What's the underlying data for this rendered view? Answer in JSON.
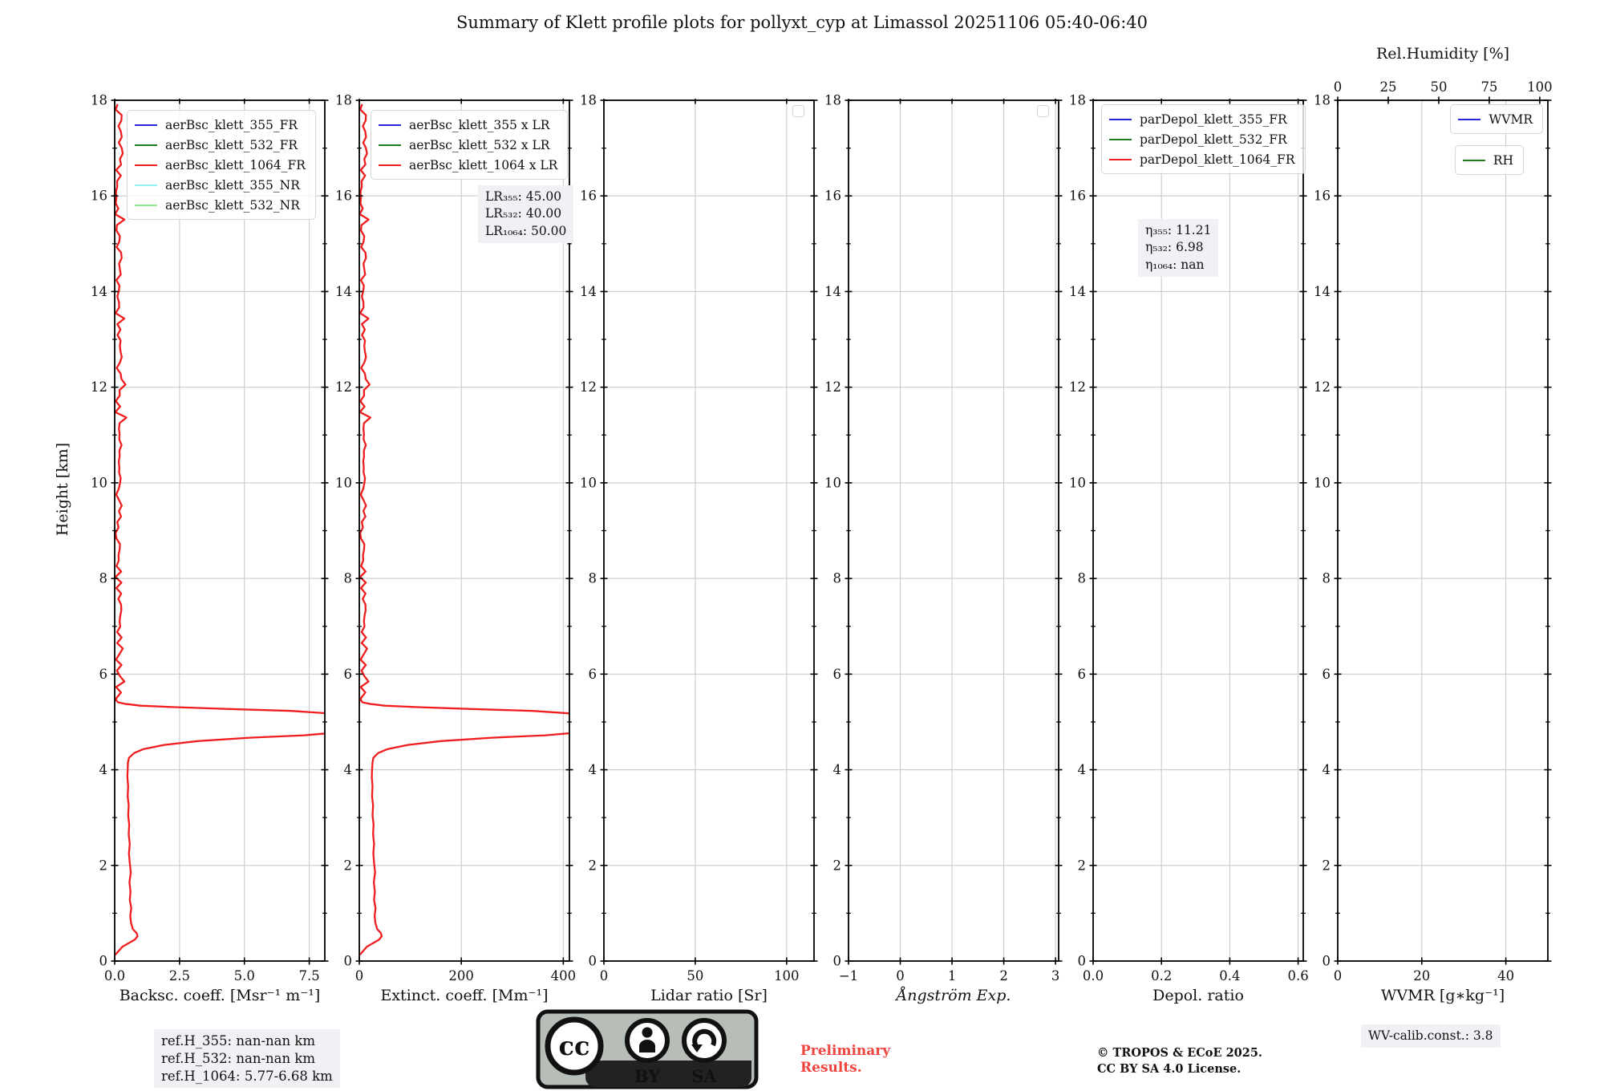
{
  "title": "Summary of Klett profile plots for pollyxt_cyp at Limassol 20251106 05:40-06:40",
  "height_axis": {
    "label": "Height [km]",
    "min": 0,
    "max": 18,
    "major_step": 2,
    "minor_step": 1
  },
  "footer": {
    "ref_heights": [
      "ref.H_355: nan-nan km",
      "ref.H_532: nan-nan km",
      "ref.H_1064: 5.77-6.68 km"
    ],
    "preliminary_lines": [
      "Preliminary",
      "Results."
    ],
    "credit_lines": [
      "© TROPOS & ECoE 2025.",
      "CC BY SA 4.0 License."
    ],
    "wv_calib": "WV-calib.const.: 3.8",
    "license": {
      "cc": "cc",
      "by": "BY",
      "sa": "SA"
    }
  },
  "chart_data": [
    {
      "name": "backscatter",
      "type": "line",
      "xlabel": "Backsc. coeff. [Msr⁻¹ m⁻¹]",
      "xlim": [
        0,
        8.1
      ],
      "ylim": [
        0,
        18
      ],
      "grid": true,
      "xticks": [
        {
          "v": 0,
          "t": "0.0"
        },
        {
          "v": 2.5,
          "t": "2.5"
        },
        {
          "v": 5,
          "t": "5.0"
        },
        {
          "v": 7.5,
          "t": "7.5"
        }
      ],
      "legends": [
        {
          "x": 15,
          "y": 12,
          "items": [
            {
              "label": "aerBsc_klett_355_FR",
              "color": "#2727d8"
            },
            {
              "label": "aerBsc_klett_532_FR",
              "color": "#1e7d1e"
            },
            {
              "label": "aerBsc_klett_1064_FR",
              "color": "#ef1d1d"
            },
            {
              "label": "aerBsc_klett_355_NR",
              "color": "#8ef2ee"
            },
            {
              "label": "aerBsc_klett_532_NR",
              "color": "#8fe98f"
            }
          ]
        }
      ],
      "series": [
        {
          "name": "aerBsc_klett_1064_FR",
          "color": "#ef1d1d",
          "points": [
            [
              0.02,
              0.13
            ],
            [
              0.3,
              0.3
            ],
            [
              0.78,
              0.45
            ],
            [
              0.88,
              0.52
            ],
            [
              0.85,
              0.58
            ],
            [
              0.7,
              0.67
            ],
            [
              0.63,
              0.8
            ],
            [
              0.6,
              0.95
            ],
            [
              0.64,
              1.1
            ],
            [
              0.58,
              1.28
            ],
            [
              0.61,
              1.45
            ],
            [
              0.57,
              1.65
            ],
            [
              0.62,
              1.85
            ],
            [
              0.58,
              2.05
            ],
            [
              0.55,
              2.25
            ],
            [
              0.58,
              2.45
            ],
            [
              0.54,
              2.65
            ],
            [
              0.56,
              2.85
            ],
            [
              0.52,
              3.05
            ],
            [
              0.54,
              3.25
            ],
            [
              0.5,
              3.45
            ],
            [
              0.52,
              3.65
            ],
            [
              0.49,
              3.85
            ],
            [
              0.5,
              4.0
            ],
            [
              0.51,
              4.15
            ],
            [
              0.55,
              4.25
            ],
            [
              0.75,
              4.35
            ],
            [
              1.1,
              4.43
            ],
            [
              1.9,
              4.52
            ],
            [
              3.2,
              4.6
            ],
            [
              5.2,
              4.67
            ],
            [
              7.3,
              4.72
            ],
            [
              8.6,
              4.78
            ],
            [
              8.8,
              4.9
            ],
            [
              8.8,
              5.05
            ],
            [
              8.6,
              5.13
            ],
            [
              8.2,
              5.18
            ],
            [
              6.8,
              5.23
            ],
            [
              4.4,
              5.27
            ],
            [
              2.3,
              5.31
            ],
            [
              1.0,
              5.34
            ],
            [
              0.38,
              5.38
            ],
            [
              0.13,
              5.41
            ],
            [
              0.06,
              5.45
            ]
          ],
          "noise": {
            "h_from": 5.5,
            "h_to": 17.95,
            "step": 0.115,
            "base": 0.015,
            "amp": 0.27,
            "seed": 9
          }
        }
      ]
    },
    {
      "name": "extinction",
      "type": "line",
      "xlabel": "Extinct. coeff. [Mm⁻¹]",
      "xlim": [
        0,
        412
      ],
      "ylim": [
        0,
        18
      ],
      "grid": true,
      "xticks": [
        {
          "v": 0,
          "t": "0"
        },
        {
          "v": 200,
          "t": "200"
        },
        {
          "v": 400,
          "t": "400"
        }
      ],
      "legends": [
        {
          "x": 14,
          "y": 12,
          "items": [
            {
              "label": "aerBsc_klett_355 x LR",
              "color": "#2727d8"
            },
            {
              "label": "aerBsc_klett_532 x LR",
              "color": "#1e7d1e"
            },
            {
              "label": "aerBsc_klett_1064 x LR",
              "color": "#ef1d1d"
            }
          ]
        }
      ],
      "annotation": {
        "x": 148,
        "y": 106,
        "lines": [
          "LR₃₅₅: 45.00",
          "LR₅₃₂: 40.00",
          "LR₁₀₆₄: 50.00"
        ]
      },
      "series": [
        {
          "name": "aerBsc_klett_1064 x LR",
          "color": "#ef1d1d",
          "points": [
            [
              1,
              0.13
            ],
            [
              15,
              0.3
            ],
            [
              39,
              0.45
            ],
            [
              44,
              0.52
            ],
            [
              42.5,
              0.58
            ],
            [
              35,
              0.67
            ],
            [
              31.5,
              0.8
            ],
            [
              30,
              0.95
            ],
            [
              32,
              1.1
            ],
            [
              29,
              1.28
            ],
            [
              30.5,
              1.45
            ],
            [
              28.5,
              1.65
            ],
            [
              31,
              1.85
            ],
            [
              29,
              2.05
            ],
            [
              27.5,
              2.25
            ],
            [
              29,
              2.45
            ],
            [
              27,
              2.65
            ],
            [
              28,
              2.85
            ],
            [
              26,
              3.05
            ],
            [
              27,
              3.25
            ],
            [
              25,
              3.45
            ],
            [
              26,
              3.65
            ],
            [
              24.5,
              3.85
            ],
            [
              25,
              4.0
            ],
            [
              26,
              4.15
            ],
            [
              27.5,
              4.25
            ],
            [
              37,
              4.35
            ],
            [
              55,
              4.43
            ],
            [
              95,
              4.52
            ],
            [
              160,
              4.6
            ],
            [
              260,
              4.67
            ],
            [
              365,
              4.72
            ],
            [
              430,
              4.78
            ],
            [
              440,
              4.9
            ],
            [
              440,
              5.05
            ],
            [
              430,
              5.13
            ],
            [
              410,
              5.18
            ],
            [
              340,
              5.23
            ],
            [
              220,
              5.27
            ],
            [
              115,
              5.31
            ],
            [
              50,
              5.34
            ],
            [
              19,
              5.38
            ],
            [
              6.5,
              5.41
            ],
            [
              3,
              5.45
            ]
          ],
          "noise": {
            "h_from": 5.5,
            "h_to": 17.95,
            "step": 0.115,
            "base": 0.8,
            "amp": 13,
            "seed": 9
          }
        }
      ]
    },
    {
      "name": "lidar-ratio",
      "type": "line",
      "xlabel": "Lidar ratio [Sr]",
      "xlim": [
        0,
        115
      ],
      "ylim": [
        0,
        18
      ],
      "grid": true,
      "xticks": [
        {
          "v": 0,
          "t": "0"
        },
        {
          "v": 50,
          "t": "50"
        },
        {
          "v": 100,
          "t": "100"
        }
      ],
      "legends": [
        {
          "right": 12,
          "y": 6,
          "empty": true,
          "items": []
        }
      ],
      "series": []
    },
    {
      "name": "angstroem-exponent",
      "type": "line",
      "xlabel": "Ångström Exp.",
      "xlim": [
        -1,
        3.06
      ],
      "ylim": [
        0,
        18
      ],
      "grid": true,
      "xticks": [
        {
          "v": -1,
          "t": "−1"
        },
        {
          "v": 0,
          "t": "0"
        },
        {
          "v": 1,
          "t": "1"
        },
        {
          "v": 2,
          "t": "2"
        },
        {
          "v": 3,
          "t": "3"
        }
      ],
      "legends": [
        {
          "right": 12,
          "y": 6,
          "empty": true,
          "items": []
        }
      ],
      "series": []
    },
    {
      "name": "depol-ratio",
      "type": "line",
      "xlabel": "Depol. ratio",
      "xlim": [
        0,
        0.615
      ],
      "ylim": [
        0,
        18
      ],
      "grid": true,
      "xticks": [
        {
          "v": 0,
          "t": "0.0"
        },
        {
          "v": 0.2,
          "t": "0.2"
        },
        {
          "v": 0.4,
          "t": "0.4"
        },
        {
          "v": 0.6,
          "t": "0.6"
        }
      ],
      "legends": [
        {
          "x": 10,
          "y": 5,
          "items": [
            {
              "label": "parDepol_klett_355_FR",
              "color": "#2727d8"
            },
            {
              "label": "parDepol_klett_532_FR",
              "color": "#1e7d1e"
            },
            {
              "label": "parDepol_klett_1064_FR",
              "color": "#ef1d1d"
            }
          ]
        }
      ],
      "annotation": {
        "x": 56,
        "y": 148,
        "lines": [
          "η₃₅₅: 11.21",
          "η₅₃₂: 6.98",
          "η₁₀₆₄: nan"
        ]
      },
      "series": []
    },
    {
      "name": "wvmr",
      "type": "line",
      "xlabel": "WVMR [g∗kg⁻¹]",
      "xlim": [
        0,
        50
      ],
      "ylim": [
        0,
        18
      ],
      "grid": true,
      "xticks": [
        {
          "v": 0,
          "t": "0"
        },
        {
          "v": 20,
          "t": "20"
        },
        {
          "v": 40,
          "t": "40"
        }
      ],
      "top_axis": {
        "label": "Rel.Humidity [%]",
        "lim": [
          0,
          104
        ],
        "ticks": [
          {
            "v": 0,
            "t": "0"
          },
          {
            "v": 25,
            "t": "25"
          },
          {
            "v": 50,
            "t": "50"
          },
          {
            "v": 75,
            "t": "75"
          },
          {
            "v": 100,
            "t": "100"
          }
        ]
      },
      "legends": [
        {
          "right": 6,
          "y": 5,
          "items": [
            {
              "label": "WVMR",
              "color": "#2727d8"
            }
          ]
        },
        {
          "right": 30,
          "y": 56,
          "items": [
            {
              "label": "RH",
              "color": "#1e7d1e"
            }
          ]
        }
      ],
      "series": []
    }
  ]
}
